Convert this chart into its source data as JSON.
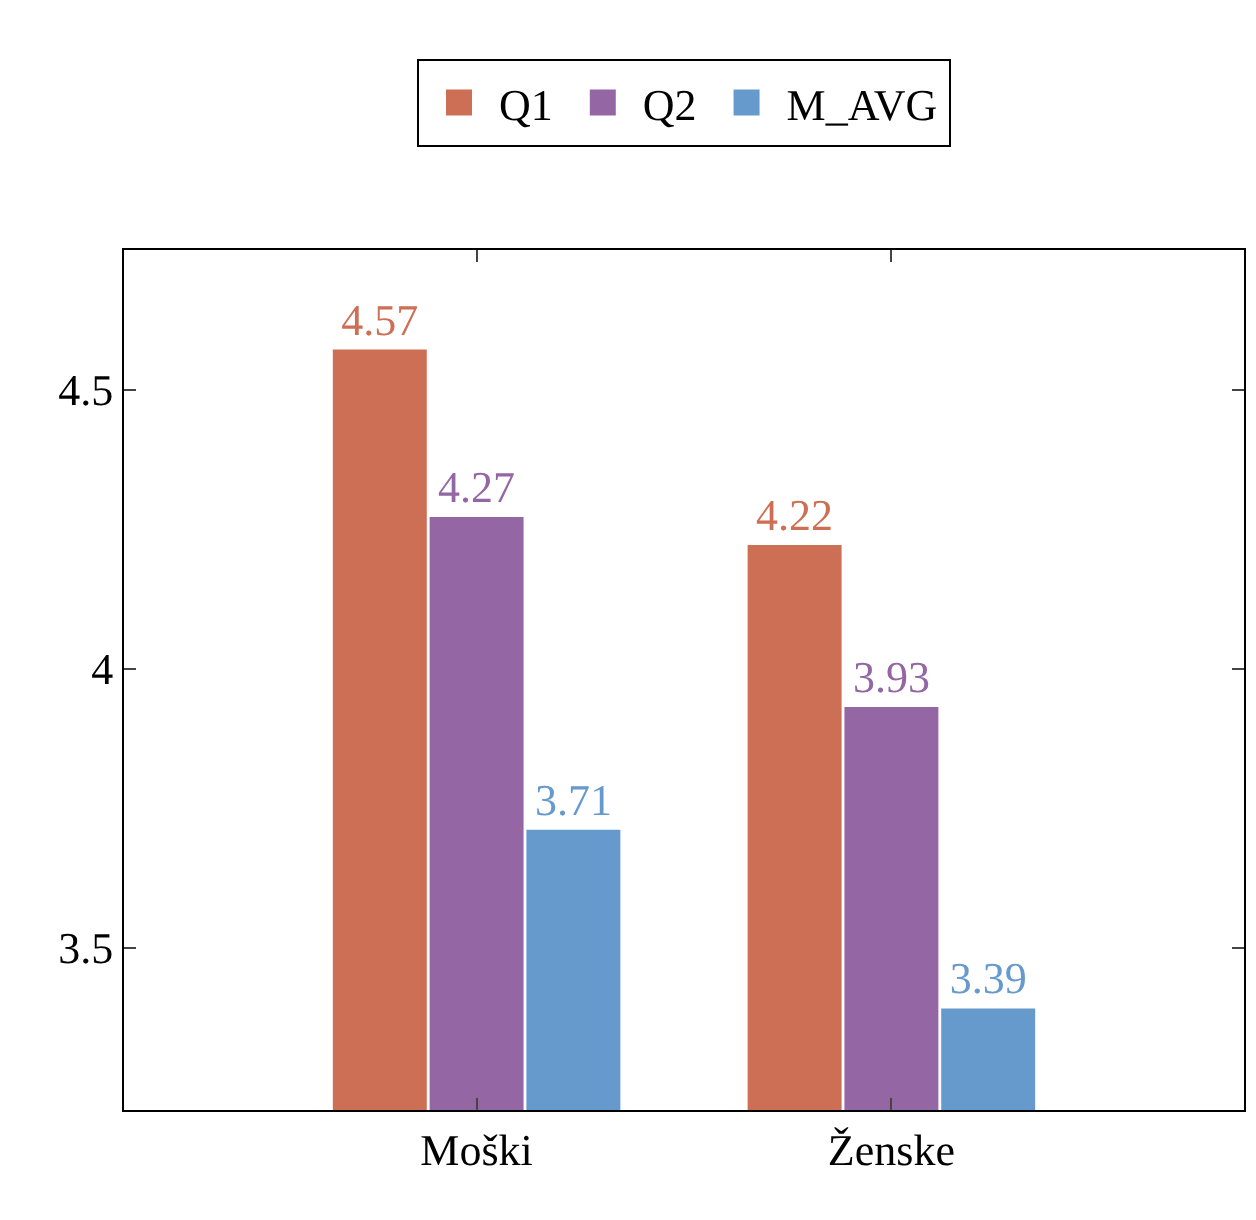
{
  "chart_data": {
    "type": "bar",
    "categories": [
      "Moški",
      "Ženske"
    ],
    "series": [
      {
        "name": "Q1",
        "color": "#cd6f55",
        "values": [
          4.57,
          4.22
        ]
      },
      {
        "name": "Q2",
        "color": "#9467a4",
        "values": [
          4.27,
          3.93
        ]
      },
      {
        "name": "M_AVG",
        "color": "#6699cc",
        "values": [
          3.71,
          3.39
        ]
      }
    ],
    "ylim": [
      3.21,
      4.75
    ],
    "yticks": [
      {
        "value": 3.5,
        "label": "3.5"
      },
      {
        "value": 4,
        "label": "4"
      },
      {
        "value": 4.5,
        "label": "4.5"
      }
    ],
    "data_labels": true,
    "grid": false,
    "legend": "top"
  }
}
